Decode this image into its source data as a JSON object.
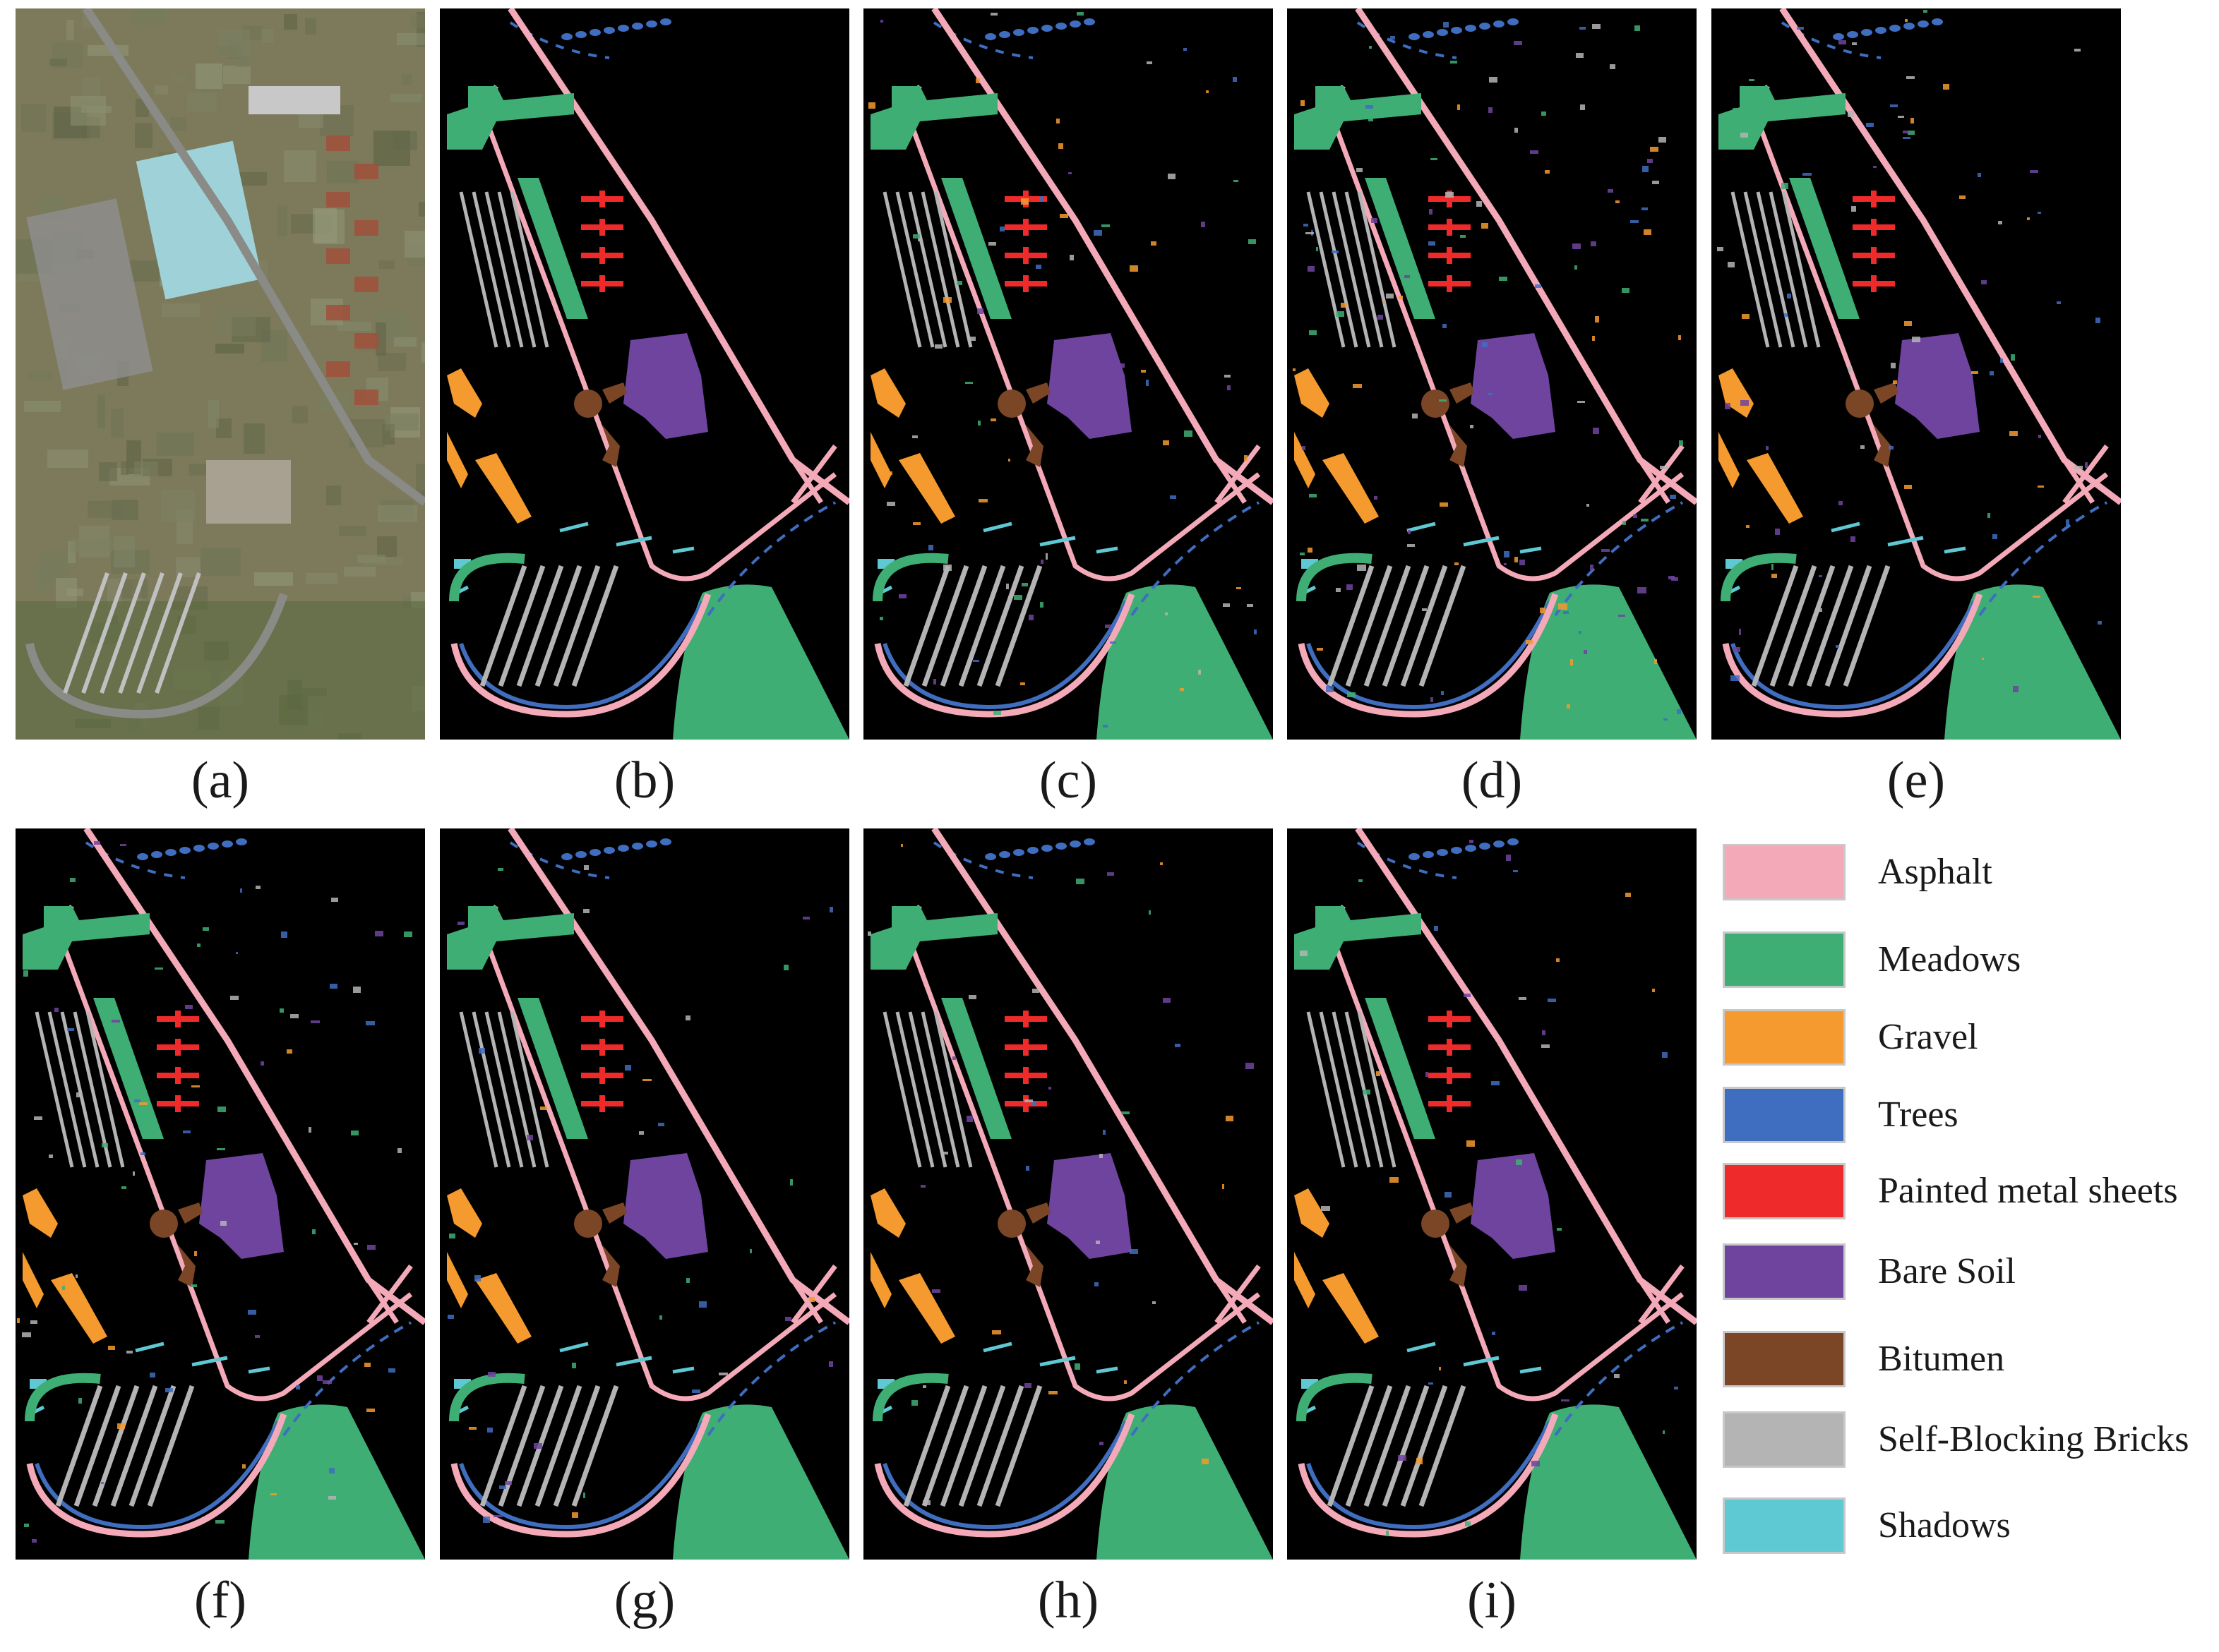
{
  "figure": {
    "panels": [
      {
        "id": "a",
        "caption": "(a)",
        "kind": "satellite"
      },
      {
        "id": "b",
        "caption": "(b)",
        "kind": "map",
        "noise": 0
      },
      {
        "id": "c",
        "caption": "(c)",
        "kind": "map",
        "noise": 2
      },
      {
        "id": "d",
        "caption": "(d)",
        "kind": "map",
        "noise": 3
      },
      {
        "id": "e",
        "caption": "(e)",
        "kind": "map",
        "noise": 2
      },
      {
        "id": "f",
        "caption": "(f)",
        "kind": "map",
        "noise": 2
      },
      {
        "id": "g",
        "caption": "(g)",
        "kind": "map",
        "noise": 1
      },
      {
        "id": "h",
        "caption": "(h)",
        "kind": "map",
        "noise": 1
      },
      {
        "id": "i",
        "caption": "(i)",
        "kind": "map",
        "noise": 1
      }
    ]
  },
  "legend": {
    "items": [
      {
        "label": "Asphalt",
        "color": "#f4a9b8"
      },
      {
        "label": "Meadows",
        "color": "#3fae74"
      },
      {
        "label": "Gravel",
        "color": "#f49a2e"
      },
      {
        "label": "Trees",
        "color": "#3f6dbf"
      },
      {
        "label": "Painted metal sheets",
        "color": "#ee2a2a"
      },
      {
        "label": "Bare Soil",
        "color": "#6f449f"
      },
      {
        "label": "Bitumen",
        "color": "#7a4626"
      },
      {
        "label": "Self-Blocking Bricks",
        "color": "#b4b4b4"
      },
      {
        "label": "Shadows",
        "color": "#5ec8d3"
      }
    ]
  }
}
